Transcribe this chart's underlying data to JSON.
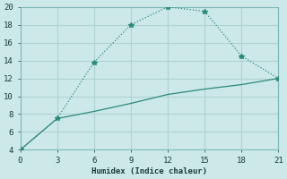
{
  "xlabel": "Humidex (Indice chaleur)",
  "line1_x": [
    0,
    3,
    6,
    9,
    12,
    15,
    18,
    21
  ],
  "line1_y": [
    4,
    7.5,
    13.8,
    18,
    20,
    19.5,
    14.5,
    12
  ],
  "line2_x": [
    0,
    3,
    6,
    9,
    12,
    15,
    18,
    21
  ],
  "line2_y": [
    4,
    7.5,
    8.3,
    9.2,
    10.2,
    10.8,
    11.3,
    12
  ],
  "line_color": "#2a8a7a",
  "bg_color": "#cce8e8",
  "grid_color": "#aed4d0",
  "xlim": [
    0,
    21
  ],
  "ylim": [
    4,
    20
  ],
  "xticks": [
    0,
    3,
    6,
    9,
    12,
    15,
    18,
    21
  ],
  "yticks": [
    4,
    6,
    8,
    10,
    12,
    14,
    16,
    18,
    20
  ]
}
